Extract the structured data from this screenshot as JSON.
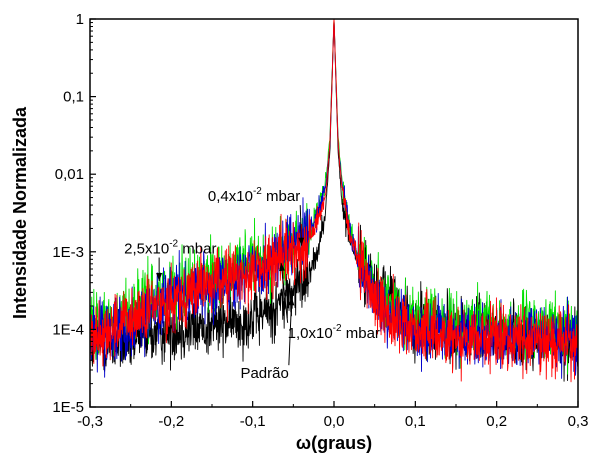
{
  "chart_data": {
    "type": "line",
    "xlabel": "ω(graus)",
    "ylabel": "Intensidade Normalizada",
    "xlim": [
      -0.3,
      0.3
    ],
    "ylim": [
      1e-05,
      1
    ],
    "yscale": "log",
    "grid": false,
    "x_ticks": [
      -0.3,
      -0.2,
      -0.1,
      0.0,
      0.1,
      0.2,
      0.3
    ],
    "x_tick_labels": [
      "-0,3",
      "-0,2",
      "-0,1",
      "0,0",
      "0,1",
      "0,2",
      "0,3"
    ],
    "y_ticks": [
      1e-05,
      0.0001,
      0.001,
      0.01,
      0.1,
      1
    ],
    "y_tick_labels": [
      "1E-5",
      "1E-4",
      "1E-3",
      "0,01",
      "0,1",
      "1"
    ],
    "series": [
      {
        "name": "Padrão",
        "color": "#000000",
        "x": [
          -0.3,
          -0.25,
          -0.2,
          -0.15,
          -0.1,
          -0.07,
          -0.05,
          -0.03,
          -0.02,
          -0.01,
          -0.005,
          0.0,
          0.005,
          0.01,
          0.02,
          0.03,
          0.04,
          0.05,
          0.07,
          0.1,
          0.15,
          0.2,
          0.25,
          0.3
        ],
        "y": [
          6e-05,
          7e-05,
          0.0001,
          0.00011,
          0.00014,
          0.0002,
          0.0003,
          0.0006,
          0.001,
          0.004,
          0.02,
          1.0,
          0.02,
          0.004,
          0.0015,
          0.0008,
          0.0005,
          0.0004,
          0.00025,
          0.00012,
          0.0001,
          9e-05,
          8e-05,
          7e-05
        ]
      },
      {
        "name": "2,5x10-2 mbar",
        "color": "#00e000",
        "x": [
          -0.3,
          -0.25,
          -0.2,
          -0.15,
          -0.1,
          -0.07,
          -0.05,
          -0.03,
          -0.02,
          -0.01,
          -0.005,
          0.0,
          0.005,
          0.01,
          0.02,
          0.03,
          0.05,
          0.07,
          0.1,
          0.15,
          0.2,
          0.25,
          0.3
        ],
        "y": [
          0.0001,
          0.00018,
          0.00035,
          0.0005,
          0.0007,
          0.0009,
          0.0012,
          0.0018,
          0.003,
          0.008,
          0.03,
          1.0,
          0.03,
          0.008,
          0.002,
          0.0008,
          0.0003,
          0.0002,
          0.00013,
          0.00012,
          0.00011,
          0.00011,
          0.0001
        ]
      },
      {
        "name": "0,4x10-2 mbar",
        "color": "#0000cc",
        "x": [
          -0.3,
          -0.25,
          -0.2,
          -0.15,
          -0.1,
          -0.07,
          -0.05,
          -0.03,
          -0.02,
          -0.01,
          -0.005,
          0.0,
          0.005,
          0.01,
          0.02,
          0.03,
          0.05,
          0.07,
          0.1,
          0.15,
          0.2,
          0.25,
          0.3
        ],
        "y": [
          8e-05,
          0.00012,
          0.00025,
          0.00038,
          0.0006,
          0.0009,
          0.0012,
          0.0017,
          0.0028,
          0.007,
          0.025,
          1.0,
          0.025,
          0.007,
          0.0018,
          0.0007,
          0.00025,
          0.00015,
          0.0001,
          9e-05,
          8e-05,
          8e-05,
          7e-05
        ]
      },
      {
        "name": "1,0x10-2 mbar",
        "color": "#ff0000",
        "x": [
          -0.3,
          -0.25,
          -0.2,
          -0.15,
          -0.1,
          -0.07,
          -0.05,
          -0.03,
          -0.02,
          -0.01,
          -0.005,
          0.0,
          0.005,
          0.01,
          0.02,
          0.03,
          0.05,
          0.07,
          0.1,
          0.15,
          0.2,
          0.25,
          0.3
        ],
        "y": [
          8e-05,
          0.00013,
          0.00025,
          0.0004,
          0.00055,
          0.0008,
          0.001,
          0.0015,
          0.0025,
          0.006,
          0.025,
          1.0,
          0.025,
          0.006,
          0.0016,
          0.0007,
          0.00025,
          0.00014,
          0.0001,
          8e-05,
          8e-05,
          7e-05,
          7e-05
        ]
      }
    ],
    "annotations": [
      {
        "series": "0,4x10-2 mbar",
        "base": "0,4x10",
        "exp": "-2",
        "unit": " mbar",
        "text_x": -0.155,
        "text_y": 0.0045,
        "arrow_to_x": -0.04,
        "arrow_to_y": 0.0012
      },
      {
        "series": "2,5x10-2 mbar",
        "base": "2,5x10",
        "exp": "-2",
        "unit": " mbar",
        "text_x": -0.258,
        "text_y": 0.00095,
        "arrow_to_x": -0.215,
        "arrow_to_y": 0.00042
      },
      {
        "series": "1,0x10-2 mbar",
        "base": "1,0x10",
        "exp": "-2",
        "unit": " mbar",
        "text_x": -0.057,
        "text_y": 7.8e-05,
        "arrow_to_x": -0.065,
        "arrow_to_y": 0.00072
      },
      {
        "series": "Padrão",
        "base": "Padrão",
        "exp": "",
        "unit": "",
        "text_x": -0.115,
        "text_y": 2.35e-05,
        "arrow_to_x": -0.052,
        "arrow_to_y": 0.00026
      }
    ]
  }
}
